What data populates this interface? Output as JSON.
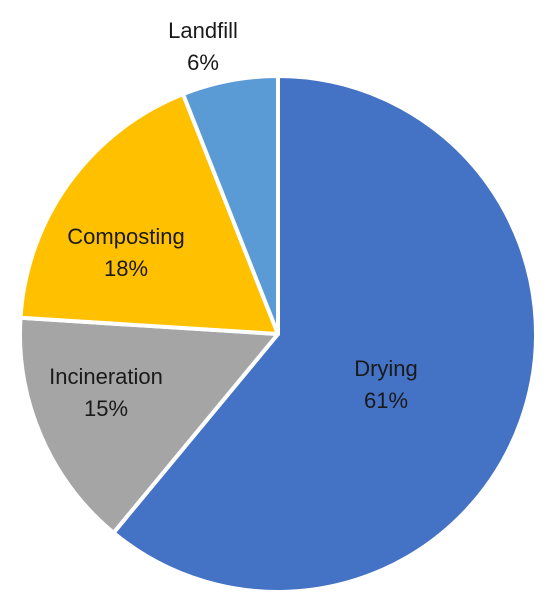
{
  "chart_data": {
    "type": "pie",
    "title": "",
    "start_angle_deg": 0,
    "direction": "clockwise",
    "slices": [
      {
        "label": "Drying",
        "value": 61,
        "value_label": "61%",
        "color": "#4472C4"
      },
      {
        "label": "Incineration",
        "value": 15,
        "value_label": "15%",
        "color": "#A5A5A5"
      },
      {
        "label": "Composting",
        "value": 18,
        "value_label": "18%",
        "color": "#FFC000"
      },
      {
        "label": "Landfill",
        "value": 6,
        "value_label": "6%",
        "color": "#5B9BD5"
      }
    ],
    "slice_border_color": "#FFFFFF",
    "legend": "none",
    "data_labels": "category-and-percent"
  }
}
